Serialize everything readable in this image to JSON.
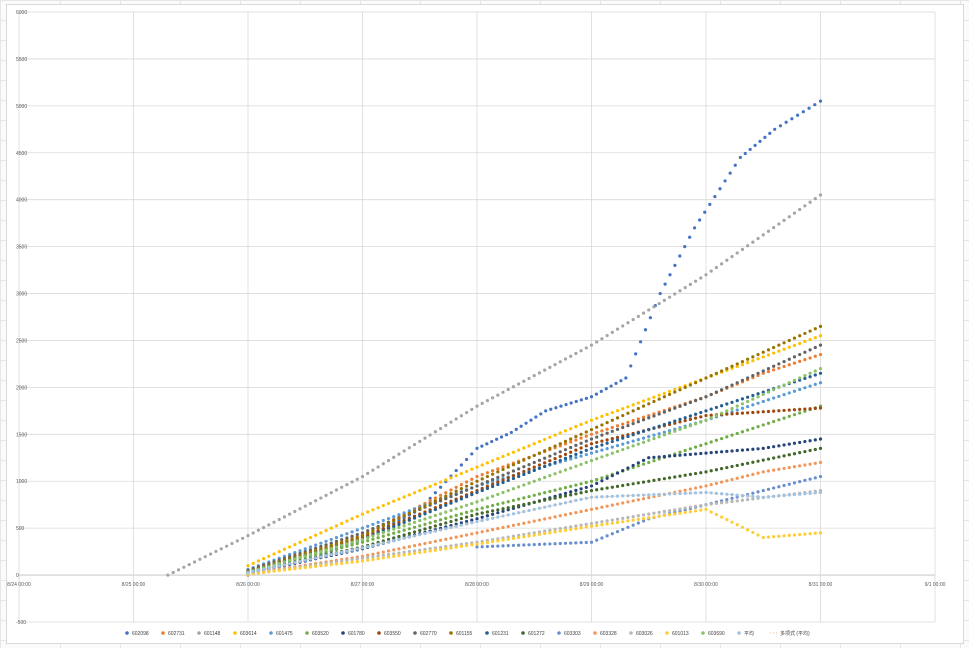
{
  "chart_data": {
    "type": "scatter",
    "title": "",
    "xlabel": "",
    "ylabel": "",
    "x_ticks": [
      "8/24 00:00",
      "8/25 00:00",
      "8/26 00:00",
      "8/27 00:00",
      "8/28 00:00",
      "8/29 00:00",
      "8/30 00:00",
      "8/31 00:00",
      "9/1 00:00"
    ],
    "y_ticks": [
      "6000",
      "5500",
      "5000",
      "4500",
      "4000",
      "3500",
      "3000",
      "2500",
      "2000",
      "1500",
      "1000",
      "500",
      "0",
      "-500"
    ],
    "xlim": [
      0,
      8
    ],
    "ylim": [
      -500,
      6000
    ],
    "grid": true,
    "legend_position": "bottom",
    "series": [
      {
        "name": "602098",
        "color": "#4472c4",
        "points": [
          [
            2.0,
            20
          ],
          [
            2.5,
            150
          ],
          [
            3.0,
            380
          ],
          [
            3.5,
            700
          ],
          [
            4.0,
            1350
          ],
          [
            4.3,
            1520
          ],
          [
            4.6,
            1750
          ],
          [
            5.0,
            1900
          ],
          [
            5.3,
            2100
          ],
          [
            5.6,
            3000
          ],
          [
            5.9,
            3700
          ],
          [
            6.3,
            4450
          ],
          [
            6.6,
            4750
          ],
          [
            6.8,
            4900
          ],
          [
            7.0,
            5050
          ]
        ]
      },
      {
        "name": "602731",
        "color": "#ed7d31",
        "points": [
          [
            2.0,
            0
          ],
          [
            3.0,
            420
          ],
          [
            4.0,
            1050
          ],
          [
            5.0,
            1500
          ],
          [
            6.0,
            1900
          ],
          [
            6.5,
            2150
          ],
          [
            7.0,
            2350
          ]
        ]
      },
      {
        "name": "601148",
        "color": "#a5a5a5",
        "points": [
          [
            1.3,
            0
          ],
          [
            2.0,
            420
          ],
          [
            3.0,
            1050
          ],
          [
            4.0,
            1800
          ],
          [
            5.0,
            2450
          ],
          [
            6.0,
            3200
          ],
          [
            7.0,
            4050
          ]
        ]
      },
      {
        "name": "603614",
        "color": "#ffc000",
        "points": [
          [
            2.0,
            100
          ],
          [
            3.0,
            650
          ],
          [
            4.0,
            1150
          ],
          [
            5.0,
            1650
          ],
          [
            6.0,
            2100
          ],
          [
            7.0,
            2550
          ]
        ]
      },
      {
        "name": "601475",
        "color": "#5b9bd5",
        "points": [
          [
            2.0,
            60
          ],
          [
            3.0,
            500
          ],
          [
            4.0,
            950
          ],
          [
            5.0,
            1300
          ],
          [
            6.0,
            1650
          ],
          [
            7.0,
            2050
          ]
        ]
      },
      {
        "name": "603520",
        "color": "#70ad47",
        "points": [
          [
            2.0,
            30
          ],
          [
            3.0,
            350
          ],
          [
            4.0,
            700
          ],
          [
            5.0,
            1000
          ],
          [
            6.0,
            1400
          ],
          [
            7.0,
            1800
          ]
        ]
      },
      {
        "name": "601780",
        "color": "#264478",
        "points": [
          [
            2.0,
            20
          ],
          [
            3.0,
            280
          ],
          [
            4.0,
            600
          ],
          [
            5.0,
            950
          ],
          [
            5.5,
            1250
          ],
          [
            6.0,
            1300
          ],
          [
            6.5,
            1350
          ],
          [
            7.0,
            1450
          ]
        ]
      },
      {
        "name": "603550",
        "color": "#9e480e",
        "points": [
          [
            2.0,
            40
          ],
          [
            3.0,
            400
          ],
          [
            4.0,
            900
          ],
          [
            5.0,
            1400
          ],
          [
            6.0,
            1700
          ],
          [
            7.0,
            1780
          ]
        ]
      },
      {
        "name": "602770",
        "color": "#636363",
        "points": [
          [
            2.0,
            50
          ],
          [
            3.0,
            450
          ],
          [
            4.0,
            950
          ],
          [
            5.0,
            1450
          ],
          [
            6.0,
            1900
          ],
          [
            7.0,
            2450
          ]
        ]
      },
      {
        "name": "601155",
        "color": "#997300",
        "points": [
          [
            2.0,
            40
          ],
          [
            3.0,
            420
          ],
          [
            4.0,
            1000
          ],
          [
            5.0,
            1550
          ],
          [
            6.0,
            2100
          ],
          [
            7.0,
            2650
          ]
        ]
      },
      {
        "name": "601231",
        "color": "#255e91",
        "points": [
          [
            2.0,
            35
          ],
          [
            3.0,
            380
          ],
          [
            4.0,
            880
          ],
          [
            5.0,
            1350
          ],
          [
            6.0,
            1750
          ],
          [
            7.0,
            2150
          ]
        ]
      },
      {
        "name": "601272",
        "color": "#43682b",
        "points": [
          [
            2.0,
            25
          ],
          [
            3.0,
            300
          ],
          [
            4.0,
            650
          ],
          [
            5.0,
            900
          ],
          [
            6.0,
            1100
          ],
          [
            7.0,
            1350
          ]
        ]
      },
      {
        "name": "603303",
        "color": "#698ed0",
        "points": [
          [
            4.0,
            300
          ],
          [
            5.0,
            350
          ],
          [
            5.5,
            600
          ],
          [
            6.0,
            750
          ],
          [
            6.5,
            900
          ],
          [
            7.0,
            1050
          ]
        ]
      },
      {
        "name": "603328",
        "color": "#f1975a",
        "points": [
          [
            2.0,
            10
          ],
          [
            3.0,
            200
          ],
          [
            4.0,
            450
          ],
          [
            5.0,
            700
          ],
          [
            6.0,
            950
          ],
          [
            6.5,
            1100
          ],
          [
            7.0,
            1200
          ]
        ]
      },
      {
        "name": "603026",
        "color": "#b7b7b7",
        "points": [
          [
            2.0,
            5
          ],
          [
            3.0,
            180
          ],
          [
            4.0,
            350
          ],
          [
            5.0,
            550
          ],
          [
            6.0,
            750
          ],
          [
            7.0,
            900
          ]
        ]
      },
      {
        "name": "601013",
        "color": "#ffcd33",
        "points": [
          [
            2.0,
            10
          ],
          [
            3.0,
            150
          ],
          [
            4.0,
            330
          ],
          [
            5.0,
            520
          ],
          [
            6.0,
            700
          ],
          [
            6.5,
            400
          ],
          [
            7.0,
            450
          ]
        ]
      },
      {
        "name": "603690",
        "color": "#8cc168",
        "points": [
          [
            2.0,
            30
          ],
          [
            3.0,
            380
          ],
          [
            4.0,
            780
          ],
          [
            5.0,
            1220
          ],
          [
            6.0,
            1650
          ],
          [
            7.0,
            2200
          ]
        ]
      },
      {
        "name": "平均",
        "color": "#9dc3e6",
        "points": [
          [
            2.0,
            25
          ],
          [
            3.0,
            290
          ],
          [
            4.0,
            570
          ],
          [
            5.0,
            830
          ],
          [
            6.0,
            880
          ],
          [
            6.5,
            830
          ],
          [
            7.0,
            880
          ]
        ]
      }
    ],
    "trendline_label": "多项式 (平均)",
    "trendline_color": "#f4b183"
  }
}
